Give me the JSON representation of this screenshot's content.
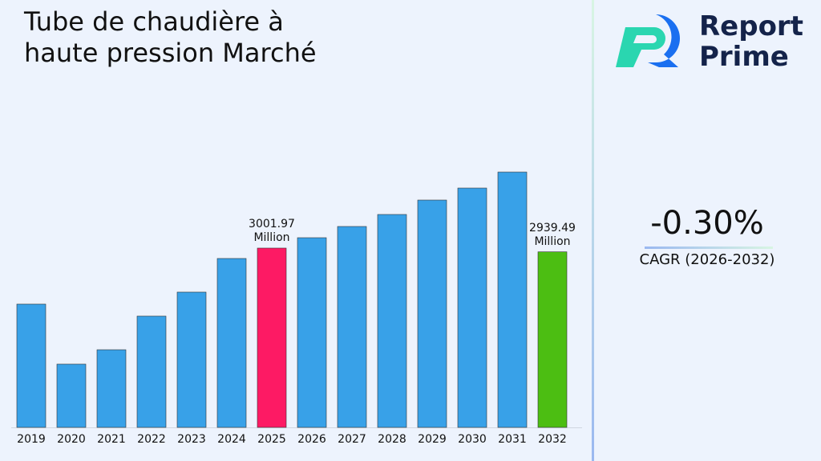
{
  "chart_data": {
    "type": "bar",
    "title": "Tube de chaudière à haute pression Marché",
    "categories": [
      "2019",
      "2020",
      "2021",
      "2022",
      "2023",
      "2024",
      "2025",
      "2026",
      "2027",
      "2028",
      "2029",
      "2030",
      "2031",
      "2032"
    ],
    "values": [
      2064,
      1059,
      1300,
      1863,
      2265,
      2828,
      3001.97,
      3176,
      3364,
      3565,
      3806,
      4007,
      4275,
      2939.49
    ],
    "value_labels": [
      null,
      null,
      null,
      null,
      null,
      null,
      "3001.97 Million",
      null,
      null,
      null,
      null,
      null,
      null,
      "2939.49 Million"
    ],
    "colors": [
      "#38a1e8",
      "#38a1e8",
      "#38a1e8",
      "#38a1e8",
      "#38a1e8",
      "#38a1e8",
      "#fd1a64",
      "#38a1e8",
      "#38a1e8",
      "#38a1e8",
      "#38a1e8",
      "#38a1e8",
      "#38a1e8",
      "#4cbe12"
    ]
  },
  "brand": [
    "Report",
    "Prime"
  ],
  "cagr": {
    "value": "-0.30%",
    "label": "CAGR (2026-2032)"
  }
}
